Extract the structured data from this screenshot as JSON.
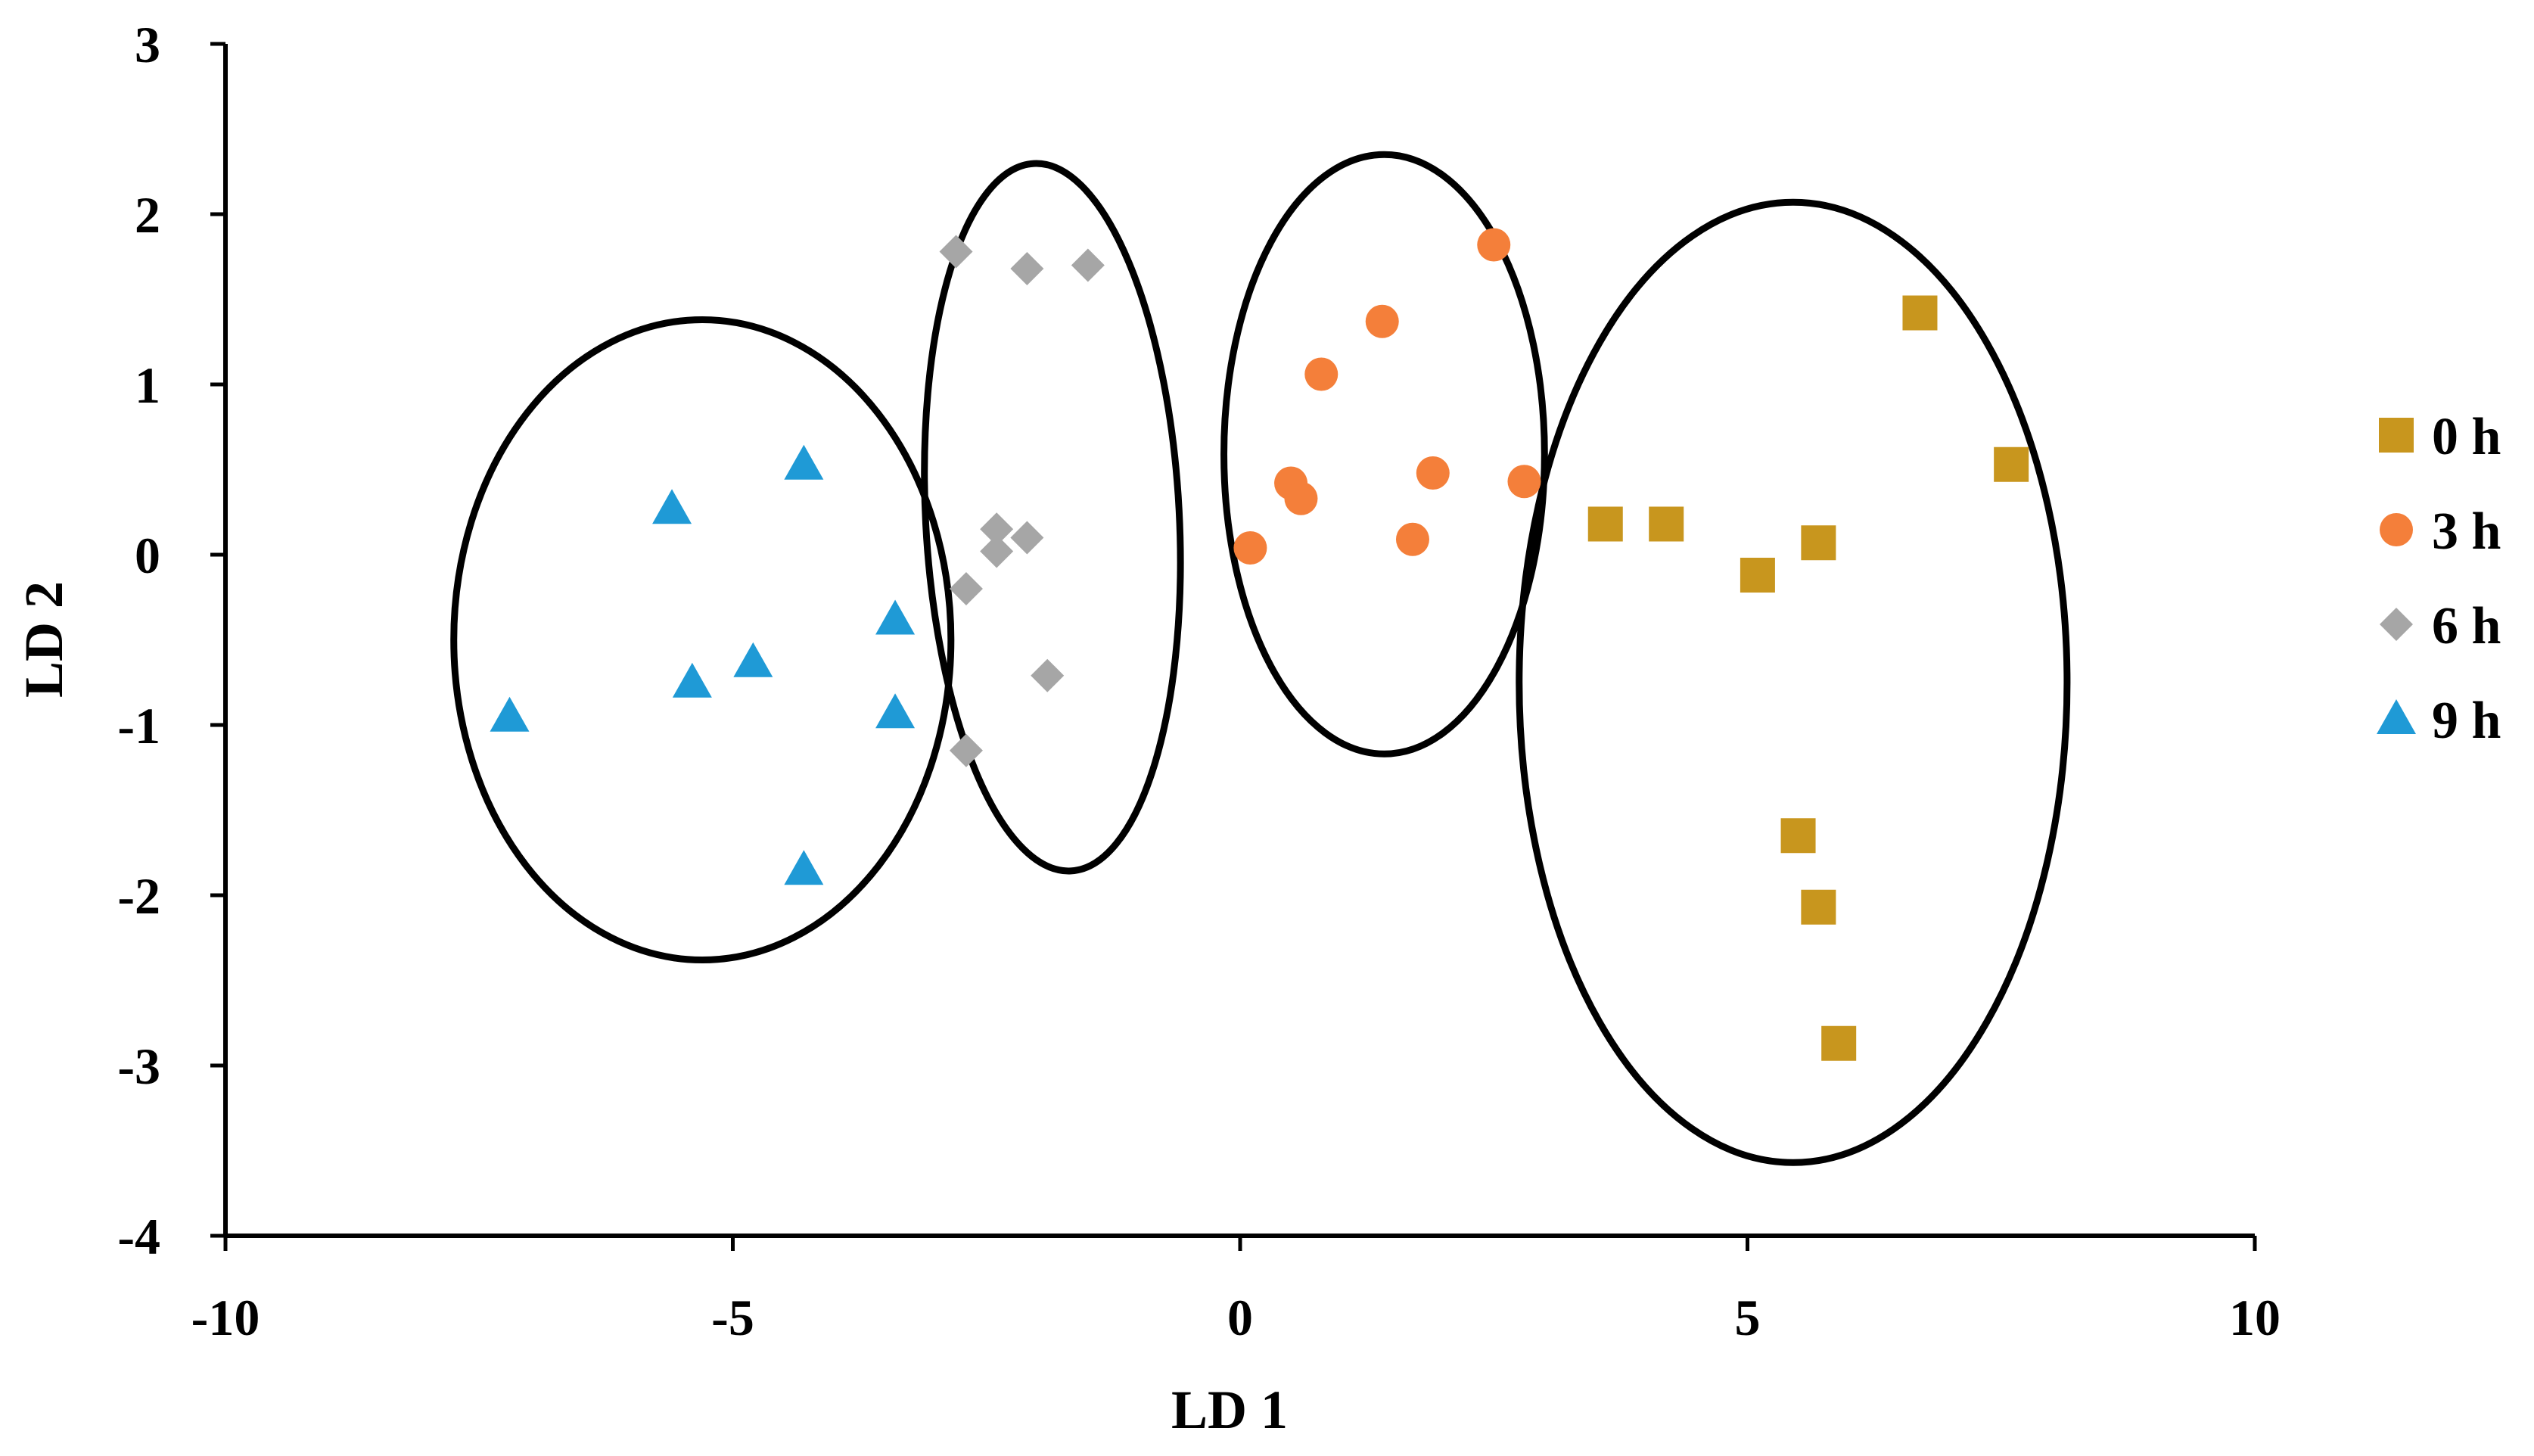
{
  "chart_data": {
    "type": "scatter",
    "title": "",
    "xlabel": "LD 1",
    "ylabel": "LD 2",
    "xlim": [
      -10,
      10
    ],
    "ylim": [
      -4,
      3
    ],
    "xticks": [
      -10,
      -5,
      0,
      5,
      10
    ],
    "yticks": [
      -4,
      -3,
      -2,
      -1,
      0,
      1,
      2,
      3
    ],
    "grid": false,
    "legend_position": "right",
    "series": [
      {
        "name": "0 h",
        "marker": "square",
        "color": "#C8961E",
        "points": [
          [
            3.6,
            0.18
          ],
          [
            4.2,
            0.18
          ],
          [
            5.1,
            -0.12
          ],
          [
            5.7,
            0.07
          ],
          [
            6.7,
            1.42
          ],
          [
            7.6,
            0.53
          ],
          [
            5.5,
            -1.65
          ],
          [
            5.7,
            -2.07
          ],
          [
            5.9,
            -2.87
          ]
        ]
      },
      {
        "name": "3 h",
        "marker": "circle",
        "color": "#F47F3A",
        "points": [
          [
            0.1,
            0.04
          ],
          [
            0.5,
            0.42
          ],
          [
            0.6,
            0.33
          ],
          [
            0.8,
            1.06
          ],
          [
            1.4,
            1.37
          ],
          [
            1.7,
            0.09
          ],
          [
            1.9,
            0.48
          ],
          [
            2.5,
            1.82
          ],
          [
            2.8,
            0.43
          ]
        ]
      },
      {
        "name": "6 h",
        "marker": "diamond",
        "color": "#A6A6A6",
        "points": [
          [
            -2.8,
            1.78
          ],
          [
            -2.1,
            1.68
          ],
          [
            -1.5,
            1.7
          ],
          [
            -2.4,
            0.15
          ],
          [
            -2.4,
            0.02
          ],
          [
            -2.1,
            0.1
          ],
          [
            -2.7,
            -0.2
          ],
          [
            -1.9,
            -0.71
          ],
          [
            -2.7,
            -1.15
          ]
        ]
      },
      {
        "name": "9 h",
        "marker": "triangle",
        "color": "#1F9AD6",
        "points": [
          [
            -7.2,
            -0.95
          ],
          [
            -5.6,
            0.27
          ],
          [
            -5.4,
            -0.75
          ],
          [
            -4.8,
            -0.63
          ],
          [
            -4.3,
            0.53
          ],
          [
            -4.3,
            -1.85
          ],
          [
            -3.4,
            -0.38
          ],
          [
            -3.4,
            -0.93
          ]
        ]
      }
    ],
    "annotations": [
      {
        "shape": "ellipse",
        "encloses": "9 h",
        "cx": -5.3,
        "cy": -0.5,
        "rx": 2.45,
        "ry": 1.88
      },
      {
        "shape": "ellipse",
        "encloses": "6 h",
        "cx": -1.85,
        "cy": 0.22,
        "rx": 1.25,
        "ry": 2.08,
        "rotation": -3
      },
      {
        "shape": "ellipse",
        "encloses": "3 h",
        "cx": 1.42,
        "cy": 0.59,
        "rx": 1.58,
        "ry": 1.76
      },
      {
        "shape": "ellipse",
        "encloses": "0 h",
        "cx": 5.45,
        "cy": -0.75,
        "rx": 2.7,
        "ry": 2.82
      }
    ]
  }
}
